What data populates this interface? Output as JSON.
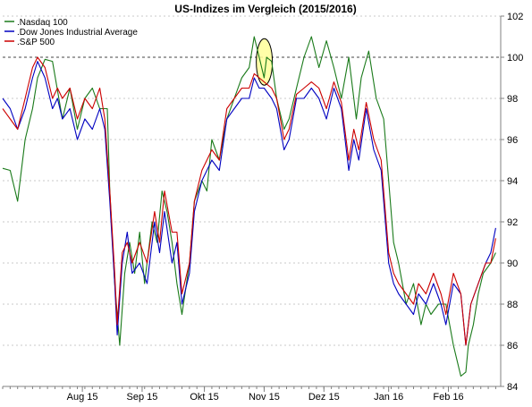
{
  "chart_data": {
    "type": "line",
    "title": "US-Indizes im Vergleich (2015/2016)",
    "ylim": [
      84,
      102
    ],
    "yticks": [
      84,
      86,
      88,
      90,
      92,
      94,
      96,
      98,
      100,
      102
    ],
    "xlim": [
      0,
      100
    ],
    "xticks": [
      {
        "label": "Aug 15",
        "x": 16
      },
      {
        "label": "Sep 15",
        "x": 28
      },
      {
        "label": "Okt 15",
        "x": 40.5
      },
      {
        "label": "Nov 15",
        "x": 52.5
      },
      {
        "label": "Dez 15",
        "x": 64.5
      },
      {
        "label": "Jan 16",
        "x": 77.5
      },
      {
        "label": "Feb 16",
        "x": 89.5
      }
    ],
    "reference_line": {
      "y": 100,
      "style": "dashed"
    },
    "highlight": {
      "x": 52,
      "y": 99.6,
      "shape": "ellipse",
      "color": "#ffff99"
    },
    "grid": "horizontal dashed",
    "legend_position": "top-left",
    "x_axis_note": "approximate position along the timeline (0 = start, 100 = end)",
    "series": [
      {
        "name": ".Nasdaq 100",
        "color": "#1a7a1a",
        "x": [
          0,
          1.5,
          3,
          4.5,
          6,
          7,
          8.5,
          10,
          12,
          13.5,
          15,
          16.5,
          18,
          19.5,
          21,
          21.5,
          22.5,
          23.5,
          24.5,
          25.5,
          26.5,
          27.5,
          28.5,
          30,
          31,
          32,
          33,
          34,
          35,
          36,
          37.5,
          38.5,
          40,
          41,
          42,
          43.5,
          45,
          46.5,
          48,
          49.5,
          50.5,
          51.5,
          52.5,
          53,
          54,
          55,
          56.5,
          57.5,
          59,
          60.5,
          62,
          63.5,
          65,
          66.5,
          68,
          69.5,
          71,
          72,
          73.5,
          75,
          76.5,
          77.5,
          78.5,
          79.5,
          81,
          82.5,
          84,
          85,
          86,
          87.5,
          89,
          90.5,
          92,
          93,
          93.5,
          94.5,
          95.5,
          96.5,
          98,
          99
        ],
        "values": [
          94.6,
          94.5,
          93.0,
          96.0,
          97.5,
          99.0,
          99.9,
          99.8,
          97.0,
          98.5,
          96.5,
          98.0,
          98.5,
          97.5,
          97.5,
          93.5,
          89.0,
          86.0,
          89.5,
          91.0,
          89.5,
          91.5,
          89.0,
          92.0,
          91.0,
          93.5,
          92.5,
          91.0,
          89.0,
          87.5,
          90.0,
          93.0,
          94.0,
          93.5,
          96.0,
          95.0,
          97.0,
          98.0,
          99.0,
          99.5,
          101.0,
          100.0,
          99.0,
          100.0,
          99.8,
          98.0,
          96.5,
          97.0,
          98.5,
          100.0,
          101.0,
          99.5,
          100.8,
          99.5,
          98.0,
          100.0,
          97.0,
          99.0,
          100.3,
          98.0,
          97.0,
          94.0,
          91.0,
          90.0,
          88.0,
          89.0,
          87.0,
          88.0,
          87.5,
          88.0,
          88.0,
          86.0,
          84.5,
          84.7,
          86.0,
          87.0,
          88.5,
          89.5,
          90.0,
          90.5
        ]
      },
      {
        "name": ".Dow Jones Industrial Average",
        "color": "#0000c0",
        "x": [
          0,
          1.5,
          3,
          4.5,
          6,
          7,
          8.5,
          10,
          11,
          12,
          13.5,
          15,
          16.5,
          18,
          19.5,
          20.5,
          21.5,
          22.5,
          23,
          24,
          25,
          26,
          27.5,
          29,
          30.5,
          31.5,
          32.5,
          34,
          35,
          36,
          37.5,
          38.5,
          40,
          41,
          42,
          43.5,
          45,
          46.5,
          48,
          49.5,
          50.5,
          51.5,
          52.5,
          54,
          55,
          56.5,
          57.5,
          59,
          60.5,
          62,
          63.5,
          65,
          66.5,
          68,
          69.5,
          70.5,
          71.5,
          73,
          74.5,
          76,
          77.5,
          78.5,
          79.5,
          81,
          82.5,
          83.5,
          85,
          86.5,
          88,
          89,
          90.5,
          92,
          93,
          94,
          95.5,
          97,
          98,
          99
        ],
        "values": [
          98.0,
          97.5,
          96.5,
          97.5,
          99.0,
          99.8,
          99.0,
          97.5,
          98.0,
          97.0,
          97.5,
          96.0,
          97.0,
          96.5,
          97.5,
          96.5,
          93.0,
          89.0,
          86.5,
          90.0,
          91.5,
          89.5,
          90.0,
          89.0,
          92.0,
          90.5,
          92.5,
          90.0,
          91.0,
          88.0,
          89.5,
          92.5,
          94.0,
          94.5,
          95.0,
          94.5,
          97.0,
          97.5,
          98.0,
          98.0,
          99.0,
          98.5,
          98.5,
          98.0,
          97.5,
          95.5,
          96.0,
          98.0,
          98.0,
          98.5,
          98.0,
          97.0,
          98.5,
          97.5,
          94.5,
          96.0,
          95.0,
          97.5,
          95.5,
          94.5,
          90.0,
          89.0,
          88.5,
          88.0,
          87.5,
          88.5,
          88.0,
          89.0,
          88.0,
          87.0,
          89.0,
          88.5,
          86.0,
          88.0,
          89.0,
          90.0,
          90.5,
          91.7
        ]
      },
      {
        "name": ".S&P 500",
        "color": "#cc0000",
        "x": [
          0,
          1.5,
          3,
          4.5,
          6,
          7,
          8.5,
          10,
          11,
          12,
          13.5,
          15,
          16.5,
          18,
          19.5,
          20.5,
          21.5,
          22.5,
          23,
          24,
          25,
          26,
          27.5,
          29,
          30.5,
          31.5,
          32.5,
          34,
          35,
          36,
          37.5,
          38.5,
          40,
          41,
          42,
          43.5,
          45,
          46.5,
          48,
          49.5,
          50.5,
          51.5,
          52.5,
          54,
          55,
          56.5,
          57.5,
          59,
          60.5,
          62,
          63.5,
          65,
          66.5,
          68,
          69.5,
          70.5,
          71.5,
          73,
          74.5,
          76,
          77.5,
          78.5,
          79.5,
          81,
          82.5,
          83.5,
          85,
          86.5,
          88,
          89,
          90.5,
          92,
          93,
          94,
          95.5,
          97,
          98,
          99
        ],
        "values": [
          97.5,
          97.0,
          96.5,
          98.0,
          99.5,
          100.0,
          99.5,
          98.0,
          98.5,
          98.0,
          98.5,
          97.0,
          98.0,
          97.5,
          98.5,
          97.0,
          93.5,
          89.5,
          87.0,
          90.5,
          91.0,
          90.0,
          91.0,
          90.0,
          92.5,
          91.0,
          93.5,
          91.5,
          91.5,
          88.5,
          90.0,
          93.0,
          94.5,
          95.0,
          95.5,
          95.0,
          97.5,
          98.0,
          98.5,
          98.5,
          99.2,
          99.0,
          98.8,
          98.5,
          98.0,
          96.0,
          96.5,
          98.2,
          98.5,
          98.8,
          98.5,
          97.5,
          98.8,
          97.8,
          95.0,
          96.5,
          95.5,
          97.8,
          96.0,
          95.0,
          90.5,
          89.5,
          89.0,
          88.5,
          88.0,
          89.0,
          88.5,
          89.5,
          88.5,
          87.5,
          89.5,
          88.5,
          86.0,
          88.0,
          89.0,
          90.0,
          90.0,
          91.2
        ]
      }
    ]
  }
}
